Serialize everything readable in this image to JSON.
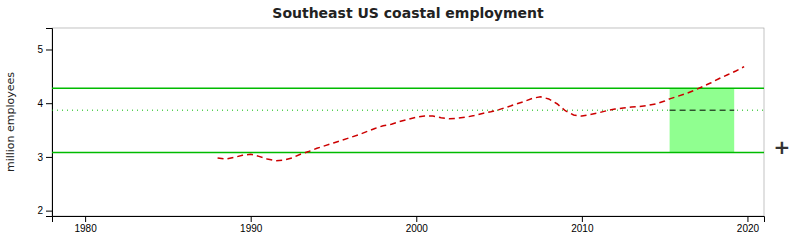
{
  "chart_data": {
    "type": "line",
    "title": "Southeast US coastal employment",
    "y_label": "million employees",
    "annotations": [
      "+"
    ],
    "xlim": [
      1978,
      2021
    ],
    "ylim": [
      1.9,
      5.4
    ],
    "xticks": [
      1980,
      1990,
      2000,
      2010,
      2020
    ],
    "yticks": [
      2,
      3,
      4,
      5
    ],
    "grid": false,
    "x": [
      1988.0,
      1988.5,
      1989.0,
      1989.5,
      1990.0,
      1990.5,
      1991.0,
      1991.5,
      1992.0,
      1992.5,
      1993.0,
      1993.5,
      1994.0,
      1994.5,
      1995.0,
      1995.5,
      1996.0,
      1996.5,
      1997.0,
      1997.5,
      1998.0,
      1998.5,
      1999.0,
      1999.5,
      2000.0,
      2000.5,
      2001.0,
      2001.5,
      2002.0,
      2002.5,
      2003.0,
      2003.5,
      2004.0,
      2004.5,
      2005.0,
      2005.5,
      2006.0,
      2006.5,
      2007.0,
      2007.5,
      2008.0,
      2008.5,
      2009.0,
      2009.5,
      2010.0,
      2010.5,
      2011.0,
      2011.5,
      2012.0,
      2012.5,
      2013.0,
      2013.5,
      2014.0,
      2014.5,
      2015.0,
      2015.3,
      2015.8,
      2016.3,
      2016.8,
      2017.3,
      2017.8,
      2018.3,
      2018.8,
      2019.3,
      2019.8
    ],
    "series": [
      {
        "color": "#cc0000",
        "line_style": "dashed",
        "values": [
          2.98,
          2.96,
          2.99,
          3.03,
          3.05,
          3.01,
          2.96,
          2.93,
          2.94,
          2.98,
          3.05,
          3.1,
          3.16,
          3.21,
          3.26,
          3.31,
          3.36,
          3.41,
          3.47,
          3.53,
          3.58,
          3.61,
          3.66,
          3.7,
          3.74,
          3.76,
          3.76,
          3.73,
          3.71,
          3.72,
          3.74,
          3.77,
          3.81,
          3.84,
          3.88,
          3.93,
          3.98,
          4.03,
          4.09,
          4.12,
          4.08,
          3.99,
          3.86,
          3.78,
          3.76,
          3.79,
          3.82,
          3.86,
          3.89,
          3.91,
          3.93,
          3.94,
          3.96,
          3.99,
          4.04,
          4.08,
          4.13,
          4.18,
          4.24,
          4.31,
          4.38,
          4.46,
          4.53,
          4.6,
          4.68
        ]
      }
    ],
    "box": {
      "x": [
        2015.3,
        2019.2
      ],
      "y": [
        3.08,
        4.28
      ],
      "color": "#90ff90"
    },
    "reference_lines": [
      {
        "y": 4.28,
        "color": "#00bb00",
        "line_style": "solid"
      },
      {
        "y": 3.08,
        "color": "#00bb00",
        "line_style": "solid"
      },
      {
        "y": 3.87,
        "color": "#00bb00",
        "line_style": "dotted"
      }
    ],
    "segments": [
      {
        "x": [
          2015.3,
          2019.2
        ],
        "y": [
          3.87,
          3.87
        ],
        "color": "#000000",
        "line_style": "dashed"
      }
    ]
  }
}
